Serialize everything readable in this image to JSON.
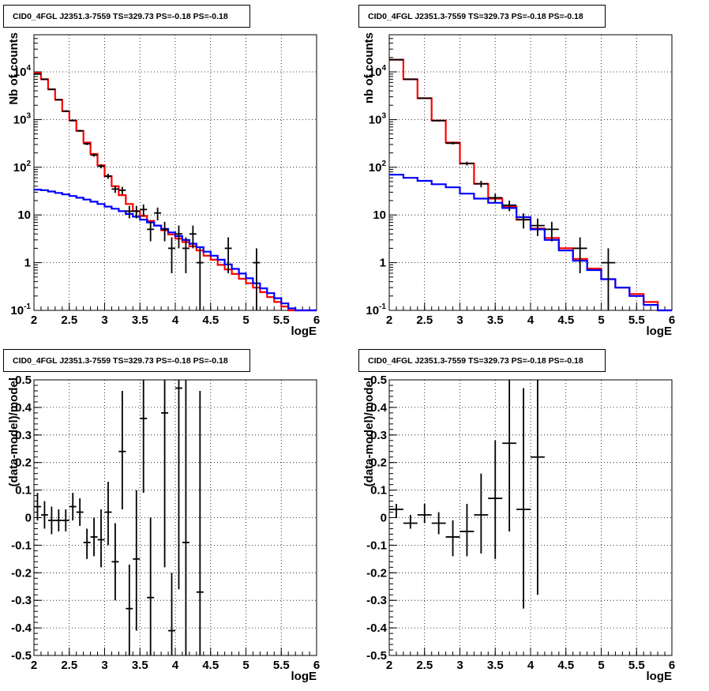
{
  "chart_data": [
    {
      "type": "line",
      "title": "CID0_4FGL J2351.3-7559 TS=329.73 PS=-0.18 PS=-0.18",
      "xlabel": "logE",
      "ylabel": "Nb of counts",
      "xlim": [
        2,
        6
      ],
      "ylim": [
        0.1,
        60000
      ],
      "log_y": true,
      "grid": true,
      "x_ticks": [
        "2",
        "2.5",
        "3",
        "3.5",
        "4",
        "4.5",
        "5",
        "5.5",
        "6"
      ],
      "y_ticks": [
        {
          "value": 0.1,
          "label": "10",
          "exp": "-1"
        },
        {
          "value": 1,
          "label": "1",
          "exp": ""
        },
        {
          "value": 10,
          "label": "10",
          "exp": ""
        },
        {
          "value": 100,
          "label": "10",
          "exp": "2"
        },
        {
          "value": 1000,
          "label": "10",
          "exp": "3"
        },
        {
          "value": 10000,
          "label": "10",
          "exp": "4"
        }
      ],
      "series": [
        {
          "color": "#ff0000",
          "kind": "step",
          "edges": [
            2.0,
            2.1,
            2.2,
            2.3,
            2.4,
            2.5,
            2.6,
            2.7,
            2.8,
            2.9,
            3.0,
            3.1,
            3.2,
            3.3,
            3.4,
            3.5,
            3.6,
            3.7,
            3.8,
            3.9,
            4.0,
            4.1,
            4.2,
            4.3,
            4.4,
            4.5,
            4.6,
            4.7,
            4.8,
            4.9,
            5.0,
            5.1,
            5.2,
            5.3,
            5.4,
            5.5,
            5.6,
            5.7,
            5.8,
            5.9,
            6.0
          ],
          "values": [
            9500,
            7000,
            4300,
            2600,
            1500,
            950,
            580,
            330,
            190,
            110,
            65,
            40,
            26,
            17,
            12,
            9.5,
            7.5,
            6.0,
            4.8,
            3.9,
            3.2,
            2.7,
            2.2,
            1.8,
            1.4,
            1.15,
            0.9,
            0.72,
            0.58,
            0.46,
            0.37,
            0.3,
            0.24,
            0.19,
            0.15,
            0.12,
            0.1,
            0.1,
            0.1,
            0.1
          ]
        },
        {
          "color": "#0000ff",
          "kind": "step",
          "edges": [
            2.0,
            2.1,
            2.2,
            2.3,
            2.4,
            2.5,
            2.6,
            2.7,
            2.8,
            2.9,
            3.0,
            3.1,
            3.2,
            3.3,
            3.4,
            3.5,
            3.6,
            3.7,
            3.8,
            3.9,
            4.0,
            4.1,
            4.2,
            4.3,
            4.4,
            4.5,
            4.6,
            4.7,
            4.8,
            4.9,
            5.0,
            5.1,
            5.2,
            5.3,
            5.4,
            5.5,
            5.6,
            5.7,
            5.8,
            5.9,
            6.0
          ],
          "values": [
            34,
            33,
            31,
            29,
            27,
            25,
            23,
            21,
            19,
            17,
            15,
            13.5,
            12,
            10.5,
            9.2,
            8.0,
            7.0,
            6.0,
            5.1,
            4.3,
            3.6,
            3.0,
            2.5,
            2.1,
            1.7,
            1.4,
            1.15,
            0.92,
            0.74,
            0.59,
            0.47,
            0.37,
            0.29,
            0.23,
            0.18,
            0.14,
            0.11,
            0.1,
            0.1,
            0.1
          ]
        }
      ],
      "points": [
        {
          "x": 2.05,
          "y": 9000,
          "xerr": 0.05,
          "ylo": 8800,
          "yhi": 9200
        },
        {
          "x": 2.15,
          "y": 7000,
          "xerr": 0.05,
          "ylo": 6850,
          "yhi": 7150
        },
        {
          "x": 2.25,
          "y": 4300,
          "xerr": 0.05,
          "ylo": 4200,
          "yhi": 4400
        },
        {
          "x": 2.35,
          "y": 2600,
          "xerr": 0.05,
          "ylo": 2500,
          "yhi": 2700
        },
        {
          "x": 2.45,
          "y": 1500,
          "xerr": 0.05,
          "ylo": 1440,
          "yhi": 1560
        },
        {
          "x": 2.55,
          "y": 960,
          "xerr": 0.05,
          "ylo": 920,
          "yhi": 1000
        },
        {
          "x": 2.65,
          "y": 580,
          "xerr": 0.05,
          "ylo": 555,
          "yhi": 605
        },
        {
          "x": 2.75,
          "y": 310,
          "xerr": 0.05,
          "ylo": 292,
          "yhi": 328
        },
        {
          "x": 2.85,
          "y": 180,
          "xerr": 0.05,
          "ylo": 167,
          "yhi": 193
        },
        {
          "x": 2.95,
          "y": 105,
          "xerr": 0.05,
          "ylo": 95,
          "yhi": 115
        },
        {
          "x": 3.05,
          "y": 65,
          "xerr": 0.05,
          "ylo": 57,
          "yhi": 73
        },
        {
          "x": 3.15,
          "y": 35,
          "xerr": 0.05,
          "ylo": 29,
          "yhi": 41
        },
        {
          "x": 3.25,
          "y": 33,
          "xerr": 0.05,
          "ylo": 27,
          "yhi": 39
        },
        {
          "x": 3.35,
          "y": 12,
          "xerr": 0.05,
          "ylo": 8.5,
          "yhi": 15.5
        },
        {
          "x": 3.45,
          "y": 12,
          "xerr": 0.05,
          "ylo": 8.5,
          "yhi": 15.5
        },
        {
          "x": 3.55,
          "y": 13,
          "xerr": 0.05,
          "ylo": 9.4,
          "yhi": 16.6
        },
        {
          "x": 3.65,
          "y": 5,
          "xerr": 0.05,
          "ylo": 2.8,
          "yhi": 7.2
        },
        {
          "x": 3.75,
          "y": 11,
          "xerr": 0.05,
          "ylo": 7.7,
          "yhi": 14.3
        },
        {
          "x": 3.85,
          "y": 5,
          "xerr": 0.05,
          "ylo": 2.8,
          "yhi": 7.2
        },
        {
          "x": 3.95,
          "y": 2,
          "xerr": 0.05,
          "ylo": 0.6,
          "yhi": 3.4
        },
        {
          "x": 4.05,
          "y": 4,
          "xerr": 0.05,
          "ylo": 2.0,
          "yhi": 6.0
        },
        {
          "x": 4.15,
          "y": 2,
          "xerr": 0.05,
          "ylo": 0.6,
          "yhi": 3.4
        },
        {
          "x": 4.25,
          "y": 4,
          "xerr": 0.05,
          "ylo": 2.0,
          "yhi": 6.0
        },
        {
          "x": 4.35,
          "y": 1,
          "xerr": 0.05,
          "ylo": 0.1,
          "yhi": 2.0
        },
        {
          "x": 4.75,
          "y": 2,
          "xerr": 0.05,
          "ylo": 0.6,
          "yhi": 3.4
        },
        {
          "x": 5.15,
          "y": 1,
          "xerr": 0.05,
          "ylo": 0.1,
          "yhi": 2.0
        }
      ]
    },
    {
      "type": "line",
      "title": "CID0_4FGL J2351.3-7559 TS=329.73 PS=-0.18 PS=-0.18",
      "xlabel": "logE",
      "ylabel": "nb of counts",
      "xlim": [
        2,
        6
      ],
      "ylim": [
        0.1,
        60000
      ],
      "log_y": true,
      "grid": true,
      "x_ticks": [
        "2",
        "2.5",
        "3",
        "3.5",
        "4",
        "4.5",
        "5",
        "5.5",
        "6"
      ],
      "y_ticks": [
        {
          "value": 0.1,
          "label": "10",
          "exp": "-1"
        },
        {
          "value": 1,
          "label": "1",
          "exp": ""
        },
        {
          "value": 10,
          "label": "10",
          "exp": ""
        },
        {
          "value": 100,
          "label": "10",
          "exp": "2"
        },
        {
          "value": 1000,
          "label": "10",
          "exp": "3"
        },
        {
          "value": 10000,
          "label": "10",
          "exp": "4"
        }
      ],
      "series": [
        {
          "color": "#ff0000",
          "kind": "step",
          "edges": [
            2.0,
            2.2,
            2.4,
            2.6,
            2.8,
            3.0,
            3.2,
            3.4,
            3.6,
            3.8,
            4.0,
            4.2,
            4.4,
            4.6,
            4.8,
            5.0,
            5.2,
            5.4,
            5.6,
            5.8,
            6.0
          ],
          "values": [
            18000,
            7000,
            2800,
            950,
            330,
            120,
            45,
            22,
            15,
            8.0,
            5.2,
            3.3,
            2.0,
            1.2,
            0.75,
            0.45,
            0.3,
            0.22,
            0.15,
            0.1
          ]
        },
        {
          "color": "#0000ff",
          "kind": "step",
          "edges": [
            2.0,
            2.2,
            2.4,
            2.6,
            2.8,
            3.0,
            3.2,
            3.4,
            3.6,
            3.8,
            4.0,
            4.2,
            4.4,
            4.6,
            4.8,
            5.0,
            5.2,
            5.4,
            5.6,
            5.8,
            6.0
          ],
          "values": [
            70,
            60,
            52,
            44,
            38,
            28,
            22,
            18,
            14,
            9.0,
            5.0,
            3.0,
            1.8,
            1.1,
            0.7,
            0.45,
            0.3,
            0.2,
            0.13,
            0.1
          ]
        }
      ],
      "points": [
        {
          "x": 2.1,
          "y": 18000,
          "xerr": 0.1,
          "ylo": 17700,
          "yhi": 18300
        },
        {
          "x": 2.3,
          "y": 7000,
          "xerr": 0.1,
          "ylo": 6850,
          "yhi": 7150
        },
        {
          "x": 2.5,
          "y": 2800,
          "xerr": 0.1,
          "ylo": 2700,
          "yhi": 2900
        },
        {
          "x": 2.7,
          "y": 950,
          "xerr": 0.1,
          "ylo": 910,
          "yhi": 990
        },
        {
          "x": 2.9,
          "y": 320,
          "xerr": 0.1,
          "ylo": 300,
          "yhi": 340
        },
        {
          "x": 3.1,
          "y": 120,
          "xerr": 0.1,
          "ylo": 109,
          "yhi": 131
        },
        {
          "x": 3.3,
          "y": 45,
          "xerr": 0.1,
          "ylo": 38,
          "yhi": 52
        },
        {
          "x": 3.5,
          "y": 23,
          "xerr": 0.1,
          "ylo": 18.2,
          "yhi": 27.8
        },
        {
          "x": 3.7,
          "y": 16,
          "xerr": 0.1,
          "ylo": 12,
          "yhi": 20
        },
        {
          "x": 3.9,
          "y": 8,
          "xerr": 0.1,
          "ylo": 5.2,
          "yhi": 10.8
        },
        {
          "x": 4.1,
          "y": 6,
          "xerr": 0.1,
          "ylo": 3.6,
          "yhi": 8.4
        },
        {
          "x": 4.3,
          "y": 5,
          "xerr": 0.1,
          "ylo": 2.8,
          "yhi": 7.2
        },
        {
          "x": 4.7,
          "y": 2,
          "xerr": 0.1,
          "ylo": 0.6,
          "yhi": 3.4
        },
        {
          "x": 5.1,
          "y": 1,
          "xerr": 0.1,
          "ylo": 0.1,
          "yhi": 2.0
        }
      ]
    },
    {
      "type": "scatter",
      "title": "CID0_4FGL J2351.3-7559 TS=329.73 PS=-0.18 PS=-0.18",
      "xlabel": "logE",
      "ylabel": "(data-model)/model",
      "xlim": [
        2,
        6
      ],
      "ylim": [
        -0.5,
        0.5
      ],
      "grid": true,
      "x_ticks": [
        "2",
        "2.5",
        "3",
        "3.5",
        "4",
        "4.5",
        "5",
        "5.5",
        "6"
      ],
      "y_ticks": [
        "-0.5",
        "-0.4",
        "-0.3",
        "-0.2",
        "-0.1",
        "0",
        "0.1",
        "0.2",
        "0.3",
        "0.4",
        "0.5"
      ],
      "points": [
        {
          "x": 2.05,
          "y": 0.04,
          "xerr": 0.05,
          "ylo": -0.01,
          "yhi": 0.09
        },
        {
          "x": 2.15,
          "y": 0.01,
          "xerr": 0.05,
          "ylo": -0.04,
          "yhi": 0.06
        },
        {
          "x": 2.25,
          "y": -0.01,
          "xerr": 0.05,
          "ylo": -0.06,
          "yhi": 0.04
        },
        {
          "x": 2.35,
          "y": -0.01,
          "xerr": 0.05,
          "ylo": -0.05,
          "yhi": 0.03
        },
        {
          "x": 2.45,
          "y": -0.01,
          "xerr": 0.05,
          "ylo": -0.05,
          "yhi": 0.03
        },
        {
          "x": 2.55,
          "y": 0.04,
          "xerr": 0.05,
          "ylo": -0.01,
          "yhi": 0.09
        },
        {
          "x": 2.65,
          "y": 0.02,
          "xerr": 0.05,
          "ylo": -0.03,
          "yhi": 0.07
        },
        {
          "x": 2.75,
          "y": -0.09,
          "xerr": 0.05,
          "ylo": -0.15,
          "yhi": -0.04
        },
        {
          "x": 2.85,
          "y": -0.07,
          "xerr": 0.05,
          "ylo": -0.14,
          "yhi": 0.0
        },
        {
          "x": 2.95,
          "y": -0.08,
          "xerr": 0.05,
          "ylo": -0.18,
          "yhi": 0.03
        },
        {
          "x": 3.05,
          "y": 0.02,
          "xerr": 0.05,
          "ylo": -0.1,
          "yhi": 0.13
        },
        {
          "x": 3.15,
          "y": -0.16,
          "xerr": 0.05,
          "ylo": -0.3,
          "yhi": -0.02
        },
        {
          "x": 3.25,
          "y": 0.24,
          "xerr": 0.05,
          "ylo": 0.03,
          "yhi": 0.46
        },
        {
          "x": 3.35,
          "y": -0.33,
          "xerr": 0.05,
          "ylo": -0.5,
          "yhi": -0.17
        },
        {
          "x": 3.45,
          "y": -0.15,
          "xerr": 0.05,
          "ylo": -0.41,
          "yhi": 0.1
        },
        {
          "x": 3.55,
          "y": 0.36,
          "xerr": 0.05,
          "ylo": 0.09,
          "yhi": 0.5
        },
        {
          "x": 3.65,
          "y": -0.29,
          "xerr": 0.05,
          "ylo": -0.5,
          "yhi": 0.0
        },
        {
          "x": 3.85,
          "y": 0.38,
          "xerr": 0.05,
          "ylo": -0.18,
          "yhi": 0.5
        },
        {
          "x": 3.95,
          "y": -0.41,
          "xerr": 0.05,
          "ylo": -0.5,
          "yhi": -0.2
        },
        {
          "x": 4.05,
          "y": 0.47,
          "xerr": 0.05,
          "ylo": -0.26,
          "yhi": 0.5
        },
        {
          "x": 4.15,
          "y": -0.09,
          "xerr": 0.05,
          "ylo": -0.5,
          "yhi": 0.5
        },
        {
          "x": 4.35,
          "y": -0.27,
          "xerr": 0.05,
          "ylo": -0.5,
          "yhi": 0.46
        }
      ]
    },
    {
      "type": "scatter",
      "title": "CID0_4FGL J2351.3-7559 TS=329.73 PS=-0.18 PS=-0.18",
      "xlabel": "logE",
      "ylabel": "(data-model)/model",
      "xlim": [
        2,
        6
      ],
      "ylim": [
        -0.5,
        0.5
      ],
      "grid": true,
      "x_ticks": [
        "2",
        "2.5",
        "3",
        "3.5",
        "4",
        "4.5",
        "5",
        "5.5",
        "6"
      ],
      "y_ticks": [
        "-0.5",
        "-0.4",
        "-0.3",
        "-0.2",
        "-0.1",
        "0",
        "0.1",
        "0.2",
        "0.3",
        "0.4",
        "0.5"
      ],
      "points": [
        {
          "x": 2.1,
          "y": 0.03,
          "xerr": 0.1,
          "ylo": 0.0,
          "yhi": 0.05
        },
        {
          "x": 2.3,
          "y": -0.02,
          "xerr": 0.1,
          "ylo": -0.04,
          "yhi": 0.01
        },
        {
          "x": 2.5,
          "y": 0.01,
          "xerr": 0.1,
          "ylo": -0.02,
          "yhi": 0.05
        },
        {
          "x": 2.7,
          "y": -0.02,
          "xerr": 0.1,
          "ylo": -0.06,
          "yhi": 0.02
        },
        {
          "x": 2.9,
          "y": -0.07,
          "xerr": 0.1,
          "ylo": -0.14,
          "yhi": -0.01
        },
        {
          "x": 3.1,
          "y": -0.05,
          "xerr": 0.1,
          "ylo": -0.14,
          "yhi": 0.05
        },
        {
          "x": 3.3,
          "y": 0.01,
          "xerr": 0.1,
          "ylo": -0.13,
          "yhi": 0.16
        },
        {
          "x": 3.5,
          "y": 0.07,
          "xerr": 0.1,
          "ylo": -0.15,
          "yhi": 0.28
        },
        {
          "x": 3.7,
          "y": 0.27,
          "xerr": 0.1,
          "ylo": -0.05,
          "yhi": 0.5
        },
        {
          "x": 3.9,
          "y": 0.03,
          "xerr": 0.1,
          "ylo": -0.33,
          "yhi": 0.47
        },
        {
          "x": 4.1,
          "y": 0.22,
          "xerr": 0.1,
          "ylo": -0.28,
          "yhi": 0.5
        }
      ]
    }
  ]
}
